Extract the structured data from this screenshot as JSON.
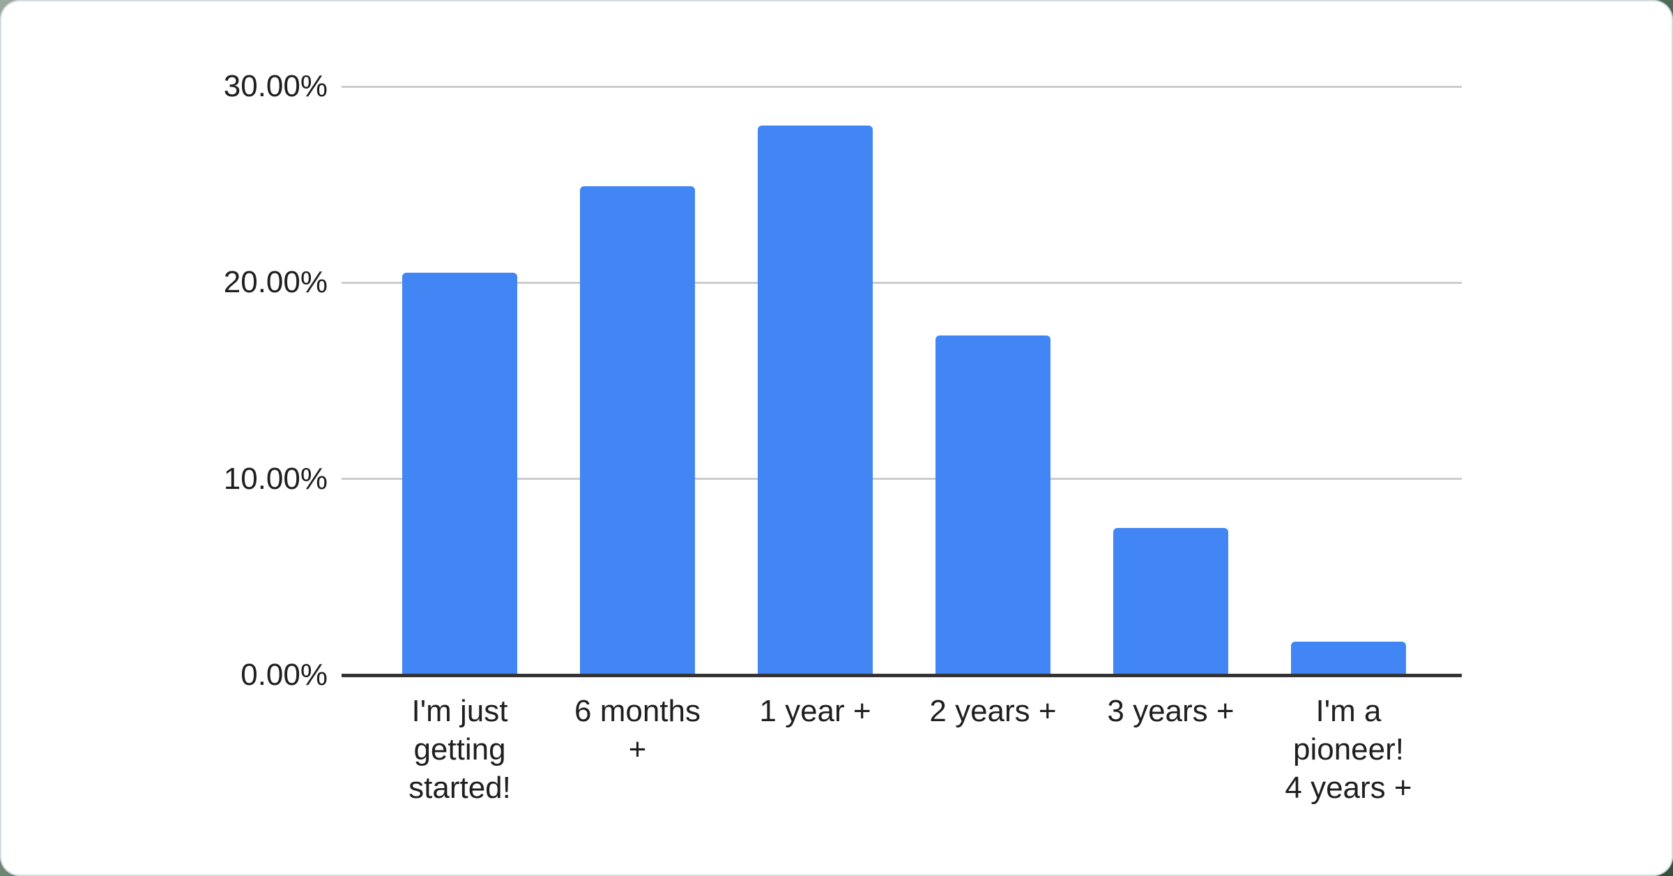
{
  "page": {
    "backdrop_color": "#32503e",
    "card_color": "#ffffff"
  },
  "chart_data": {
    "type": "bar",
    "title": "",
    "xlabel": "",
    "ylabel": "",
    "categories": [
      "I'm just getting started!",
      "6 months +",
      "1 year +",
      "2 years +",
      "3 years +",
      "I'm a pioneer! 4 years +"
    ],
    "category_label_lines": [
      [
        "I'm just",
        "getting",
        "started!"
      ],
      [
        "6 months",
        "+"
      ],
      [
        "1 year +"
      ],
      [
        "2 years +"
      ],
      [
        "3 years +"
      ],
      [
        "I'm a",
        "pioneer!",
        "4 years +"
      ]
    ],
    "values": [
      20.5,
      24.9,
      28.0,
      17.3,
      7.5,
      1.7
    ],
    "unit": "%",
    "ylim": [
      0,
      30
    ],
    "y_ticks": [
      {
        "value": 30,
        "label": "30.00%"
      },
      {
        "value": 20,
        "label": "20.00%"
      },
      {
        "value": 10,
        "label": "10.00%"
      },
      {
        "value": 0,
        "label": "0.00%"
      }
    ],
    "grid": true,
    "legend": "none",
    "bar_color": "#4285f4",
    "gridline_color": "#cccccc",
    "axis_line_color": "#333333",
    "label_color": "#1f1f1f"
  }
}
